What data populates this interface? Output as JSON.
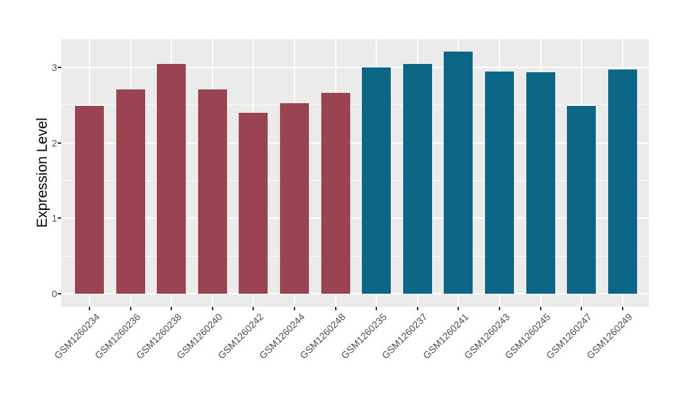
{
  "chart_data": {
    "type": "bar",
    "title": "",
    "xlabel": "",
    "ylabel": "Expression Level",
    "categories": [
      "GSM1260234",
      "GSM1260236",
      "GSM1260238",
      "GSM1260240",
      "GSM1260242",
      "GSM1260244",
      "GSM1260248",
      "GSM1260235",
      "GSM1260237",
      "GSM1260241",
      "GSM1260243",
      "GSM1260245",
      "GSM1260247",
      "GSM1260249"
    ],
    "values": [
      2.49,
      2.71,
      3.04,
      2.71,
      2.4,
      2.52,
      2.66,
      3.0,
      3.04,
      3.21,
      2.94,
      2.93,
      2.49,
      2.97
    ],
    "colors": [
      "#9B4451",
      "#9B4451",
      "#9B4451",
      "#9B4451",
      "#9B4451",
      "#9B4451",
      "#9B4451",
      "#0C6787",
      "#0C6787",
      "#0C6787",
      "#0C6787",
      "#0C6787",
      "#0C6787",
      "#0C6787"
    ],
    "groups": [
      {
        "name": "maroon-group",
        "color": "#9B4451",
        "categories": [
          "GSM1260234",
          "GSM1260236",
          "GSM1260238",
          "GSM1260240",
          "GSM1260242",
          "GSM1260244",
          "GSM1260248"
        ],
        "values": [
          2.49,
          2.71,
          3.04,
          2.71,
          2.4,
          2.52,
          2.66
        ]
      },
      {
        "name": "teal-group",
        "color": "#0C6787",
        "categories": [
          "GSM1260235",
          "GSM1260237",
          "GSM1260241",
          "GSM1260243",
          "GSM1260245",
          "GSM1260247",
          "GSM1260249"
        ],
        "values": [
          3.0,
          3.04,
          3.21,
          2.94,
          2.93,
          2.49,
          2.97
        ]
      }
    ],
    "y_ticks": [
      "0",
      "1",
      "2",
      "3"
    ],
    "y_tick_values": [
      0,
      1,
      2,
      3
    ],
    "y_minor_tick_values": [
      0.5,
      1.5,
      2.5
    ],
    "ylim": [
      -0.17,
      3.37
    ],
    "x_tick_rotation": 45,
    "grid": true,
    "legend": "none"
  },
  "style": {
    "background": "#FFFFFF",
    "panel_background": "#EBEBEB",
    "grid_major_color": "#FFFFFF",
    "grid_minor_color": "#FFFFFF",
    "axis_text_color": "#4D4D4D",
    "axis_title_color": "#000000",
    "tick_mark_color": "#333333"
  }
}
